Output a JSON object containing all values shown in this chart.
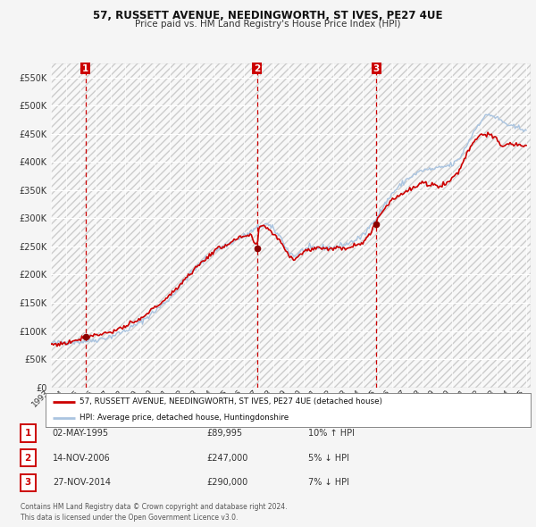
{
  "title": "57, RUSSETT AVENUE, NEEDINGWORTH, ST IVES, PE27 4UE",
  "subtitle": "Price paid vs. HM Land Registry's House Price Index (HPI)",
  "legend_line1": "57, RUSSETT AVENUE, NEEDINGWORTH, ST IVES, PE27 4UE (detached house)",
  "legend_line2": "HPI: Average price, detached house, Huntingdonshire",
  "sale_points": [
    {
      "label": "1",
      "date_str": "02-MAY-1995",
      "price": 89995,
      "year": 1995.34,
      "pct": "10%",
      "dir": "↑"
    },
    {
      "label": "2",
      "date_str": "14-NOV-2006",
      "price": 247000,
      "year": 2006.87,
      "pct": "5%",
      "dir": "↓"
    },
    {
      "label": "3",
      "date_str": "27-NOV-2014",
      "price": 290000,
      "year": 2014.9,
      "pct": "7%",
      "dir": "↓"
    }
  ],
  "vline_color": "#cc0000",
  "sale_dot_color": "#8b0000",
  "hpi_line_color": "#aac4e0",
  "price_line_color": "#cc0000",
  "bg_color": "#f5f5f5",
  "plot_bg_color": "#f0f0f0",
  "grid_color": "#ffffff",
  "label_box_color": "#cc0000",
  "footer_text": "Contains HM Land Registry data © Crown copyright and database right 2024.\nThis data is licensed under the Open Government Licence v3.0.",
  "ylim": [
    0,
    575000
  ],
  "yticks": [
    0,
    50000,
    100000,
    150000,
    200000,
    250000,
    300000,
    350000,
    400000,
    450000,
    500000,
    550000
  ],
  "xlabel_years": [
    "1993",
    "1994",
    "1995",
    "1996",
    "1997",
    "1998",
    "1999",
    "2000",
    "2001",
    "2002",
    "2003",
    "2004",
    "2005",
    "2006",
    "2007",
    "2008",
    "2009",
    "2010",
    "2011",
    "2012",
    "2013",
    "2014",
    "2015",
    "2016",
    "2017",
    "2018",
    "2019",
    "2020",
    "2021",
    "2022",
    "2023",
    "2024",
    "2025"
  ]
}
